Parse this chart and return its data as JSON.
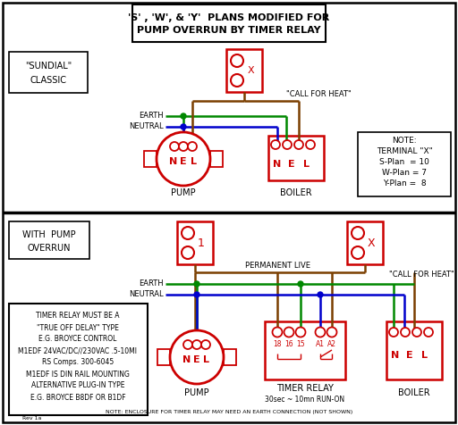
{
  "title_line1": "'S' , 'W', & 'Y'  PLANS MODIFIED FOR",
  "title_line2": "PUMP OVERRUN BY TIMER RELAY",
  "bg_color": "#ffffff",
  "red": "#cc0000",
  "green": "#008800",
  "blue": "#0000cc",
  "brown": "#7B3F00",
  "black": "#000000",
  "notes_bottom": [
    "TIMER RELAY MUST BE A",
    "\"TRUE OFF DELAY\" TYPE",
    "E.G. BROYCE CONTROL",
    "M1EDF 24VAC/DC//230VAC .5-10MI",
    "RS Comps. 300-6045",
    "M1EDF IS DIN RAIL MOUNTING",
    "ALTERNATIVE PLUG-IN TYPE",
    "E.G. BROYCE B8DF OR B1DF"
  ]
}
